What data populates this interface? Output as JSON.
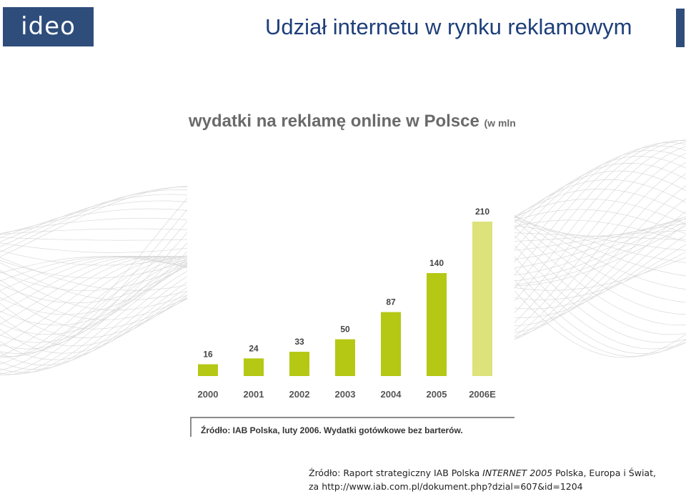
{
  "header": {
    "logo_text": "ideo",
    "title": "Udział internetu w rynku reklamowym"
  },
  "chart_data": {
    "type": "bar",
    "title": "wydatki na reklamę online w Polsce",
    "unit_label": "(w mln",
    "categories": [
      "2000",
      "2001",
      "2002",
      "2003",
      "2004",
      "2005",
      "2006E"
    ],
    "values": [
      16,
      24,
      33,
      50,
      87,
      140,
      210
    ],
    "data_labels": [
      "16",
      "24",
      "33",
      "50",
      "87",
      "140",
      "210"
    ],
    "colors": {
      "actual": "#b5c814",
      "estimate": "#dde27a"
    },
    "estimate_index": 6,
    "source": "Źródło: IAB Polska, luty 2006. Wydatki gotówkowe bez barterów."
  },
  "caption": {
    "line1_prefix": "Źródło: Raport strategiczny IAB Polska ",
    "line1_italic": "INTERNET 2005",
    "line1_suffix": " Polska, Europa i Świat,",
    "line2": "za http://www.iab.com.pl/dokument.php?dzial=607&id=1204"
  },
  "colors": {
    "brand_blue": "#2e4d7b",
    "title_blue": "#1e3f7a"
  }
}
